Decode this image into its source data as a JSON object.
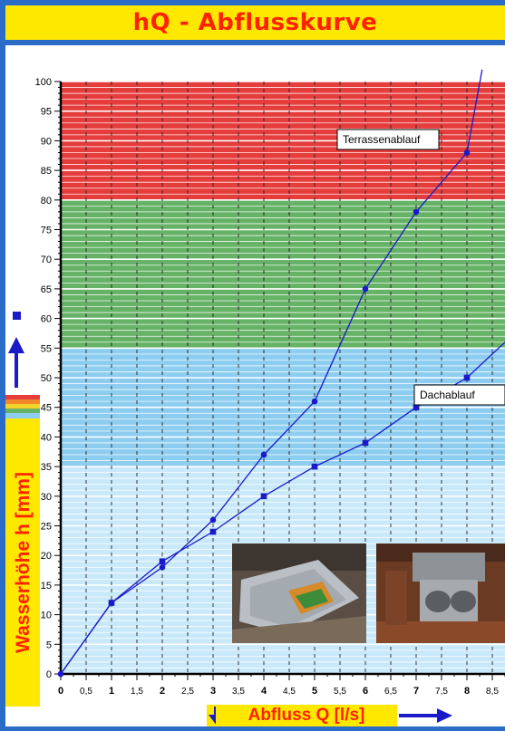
{
  "title": "hQ - Abflusskurve",
  "icons": [
    "up-arrow-icon",
    "level-square-icon",
    "color-legend-icon",
    "down-arrow-icon",
    "right-arrow-icon"
  ],
  "colors": {
    "frame": "#2a6cc8",
    "title_bg": "#ffe800",
    "title_text": "#ff2200",
    "zone_red": "#e53c3c",
    "zone_green": "#66b266",
    "zone_blue": "#8dcdf0",
    "zone_lightblue": "#c9e9fa",
    "curve": "#1a1ac8"
  },
  "chart_data": {
    "type": "line",
    "xlabel": "Abfluss Q [l/s]",
    "ylabel": "Wasserhöhe h [mm]",
    "xlim": [
      0,
      8.75
    ],
    "ylim": [
      0,
      100
    ],
    "x_ticks": [
      "0",
      "0,5",
      "1",
      "1,5",
      "2",
      "2,5",
      "3",
      "3,5",
      "4",
      "4,5",
      "5",
      "5,5",
      "6",
      "6,5",
      "7",
      "7,5",
      "8",
      "8,5"
    ],
    "y_ticks": [
      "0",
      "5",
      "10",
      "15",
      "20",
      "25",
      "30",
      "35",
      "40",
      "45",
      "50",
      "55",
      "60",
      "65",
      "70",
      "75",
      "80",
      "85",
      "90",
      "95",
      "100"
    ],
    "grid": true,
    "zones": [
      {
        "from": 80,
        "to": 100,
        "color": "#e53c3c"
      },
      {
        "from": 55,
        "to": 80,
        "color": "#66b266"
      },
      {
        "from": 35,
        "to": 55,
        "color": "#8dcdf0"
      },
      {
        "from": 0,
        "to": 35,
        "color": "#c9e9fa"
      }
    ],
    "series": [
      {
        "name": "Terrassenablauf",
        "marker": "circle",
        "x": [
          0,
          1,
          2,
          3,
          4,
          5,
          6,
          7,
          8,
          8.3
        ],
        "y": [
          0,
          12,
          18,
          26,
          37,
          46,
          65,
          78,
          88,
          102
        ]
      },
      {
        "name": "Dachablauf",
        "marker": "square",
        "x": [
          0,
          1,
          2,
          3,
          4,
          5,
          6,
          7,
          8,
          8.75
        ],
        "y": [
          0,
          12,
          19,
          24,
          30,
          35,
          39,
          45,
          50,
          56
        ]
      }
    ]
  }
}
